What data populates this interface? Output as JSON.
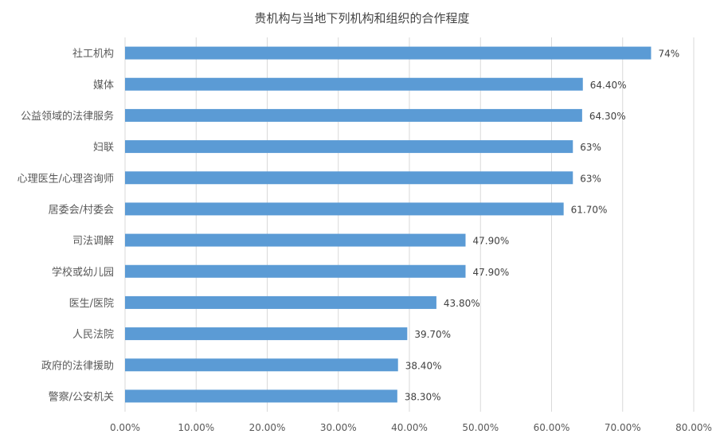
{
  "chart_data": {
    "type": "bar",
    "orientation": "horizontal",
    "title": "贵机构与当地下列机构和组织的合作程度",
    "categories": [
      "社工机构",
      "媒体",
      "公益领域的法律服务",
      "妇联",
      "心理医生/心理咨询师",
      "居委会/村委会",
      "司法调解",
      "学校或幼儿园",
      "医生/医院",
      "人民法院",
      "政府的法律援助",
      "警察/公安机关"
    ],
    "values": [
      74,
      64.4,
      64.3,
      63,
      63,
      61.7,
      47.9,
      47.9,
      43.8,
      39.7,
      38.4,
      38.3
    ],
    "value_labels": [
      "74%",
      "64.40%",
      "64.30%",
      "63%",
      "63%",
      "61.70%",
      "47.90%",
      "47.90%",
      "43.80%",
      "39.70%",
      "38.40%",
      "38.30%"
    ],
    "xlim": [
      0,
      80
    ],
    "xticks": [
      "0.00%",
      "10.00%",
      "20.00%",
      "30.00%",
      "40.00%",
      "50.00%",
      "60.00%",
      "70.00%",
      "80.00%"
    ],
    "grid": true,
    "legend": "none",
    "bar_color": "#5b9bd5"
  }
}
